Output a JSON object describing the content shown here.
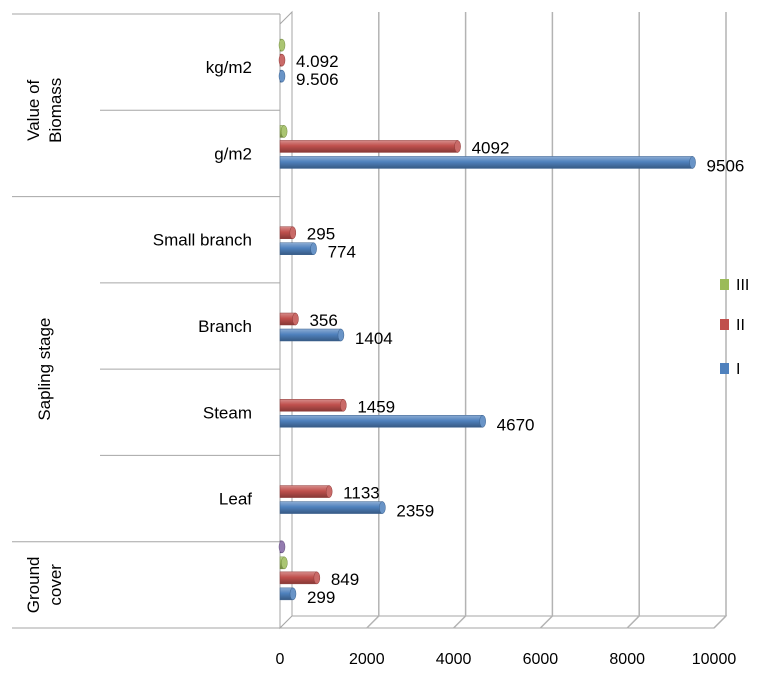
{
  "chart_data": {
    "type": "bar",
    "orientation": "horizontal",
    "style": "3d-cylinder",
    "title": "",
    "xlabel": "",
    "ylabel": "",
    "xlim": [
      0,
      10000
    ],
    "x_ticks": [
      "0",
      "2000",
      "4000",
      "6000",
      "8000",
      "10000"
    ],
    "grid": true,
    "legend_position": "right",
    "groups": [
      {
        "label": "Value of Biomass",
        "categories": [
          "kg/m2",
          "g/m2"
        ]
      },
      {
        "label": "Sapling stage",
        "categories": [
          "Small branch",
          "Branch",
          "Steam",
          "Leaf"
        ]
      },
      {
        "label": "Ground cover",
        "categories": [
          ""
        ]
      }
    ],
    "categories": [
      "kg/m2",
      "g/m2",
      "Small branch",
      "Branch",
      "Steam",
      "Leaf",
      ""
    ],
    "series": [
      {
        "name": "III",
        "color": "#9bbb59",
        "values": [
          4,
          95,
          null,
          null,
          null,
          null,
          100
        ]
      },
      {
        "name": "II",
        "color": "#c0504d",
        "values": [
          4.092,
          4092,
          295,
          356,
          1459,
          1133,
          849
        ]
      },
      {
        "name": "I",
        "color": "#4f81bd",
        "values": [
          9.506,
          9506,
          774,
          1404,
          4670,
          2359,
          299
        ]
      }
    ],
    "data_labels": {
      "II": [
        "4.092",
        "4092",
        "295",
        "356",
        "1459",
        "1133",
        "849"
      ],
      "I": [
        "9.506",
        "9506",
        "774",
        "1404",
        "4670",
        "2359",
        "299"
      ]
    },
    "extra_marks": [
      {
        "category_index": 6,
        "color": "#8064a2",
        "value": 30
      }
    ]
  }
}
